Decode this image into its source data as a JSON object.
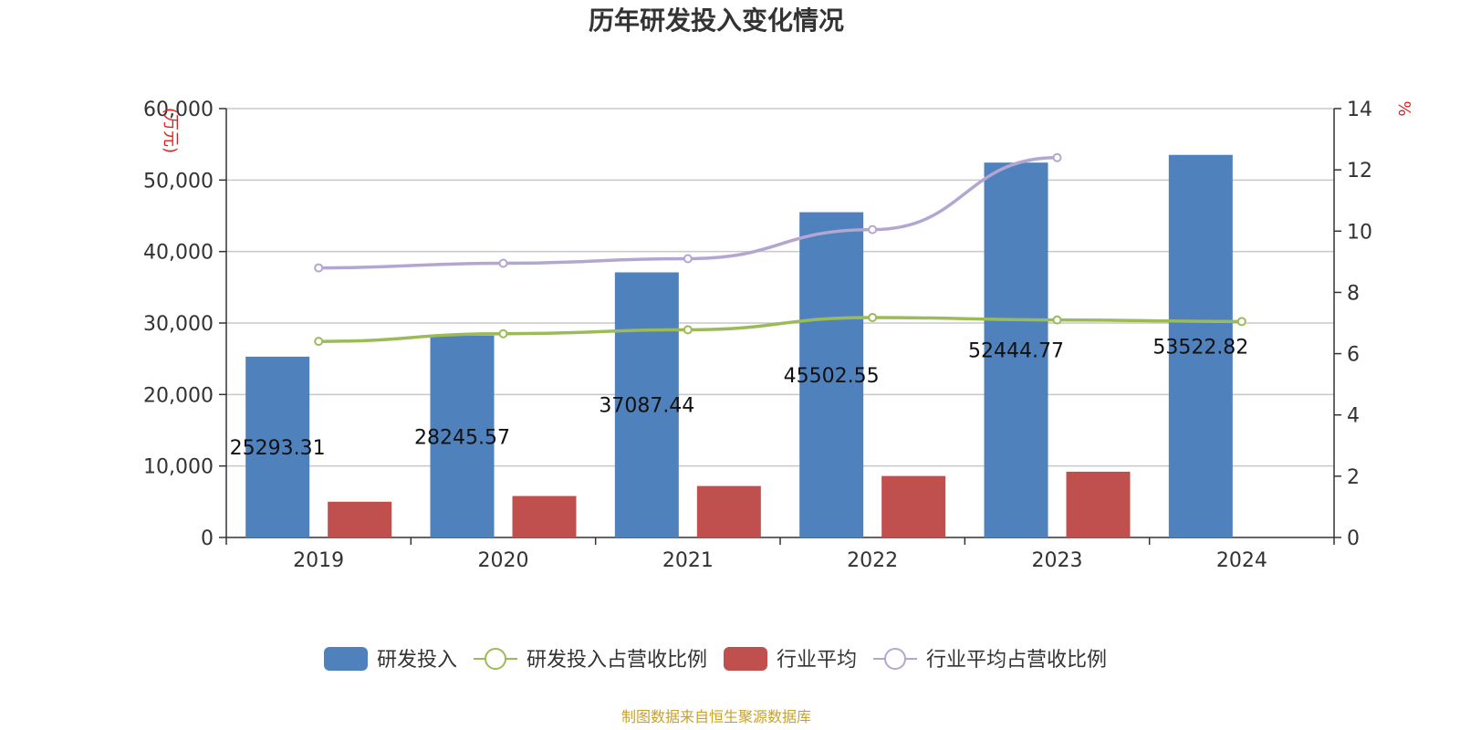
{
  "chart_data": {
    "type": "bar",
    "title": "历年研发投入变化情况",
    "categories": [
      "2019",
      "2020",
      "2021",
      "2022",
      "2023",
      "2024"
    ],
    "y_left": {
      "unit": "(万元)",
      "ylim": [
        0,
        60000
      ],
      "ticks": [
        "0",
        "10,000",
        "20,000",
        "30,000",
        "40,000",
        "50,000",
        "60,000"
      ]
    },
    "y_right": {
      "unit": "%",
      "ylim": [
        0,
        14
      ],
      "ticks": [
        "0",
        "2",
        "4",
        "6",
        "8",
        "10",
        "12",
        "14"
      ]
    },
    "grid": true,
    "legend_position": "bottom-center",
    "series": [
      {
        "name": "研发投入",
        "kind": "bar",
        "axis": "left",
        "color": "#4f81bd",
        "values": [
          25293.31,
          28245.57,
          37087.44,
          45502.55,
          52444.77,
          53522.82
        ],
        "labels": [
          "25293.31",
          "28245.57",
          "37087.44",
          "45502.55",
          "52444.77",
          "53522.82"
        ]
      },
      {
        "name": "研发投入占营收比例",
        "kind": "line",
        "axis": "right",
        "color": "#9bbb59",
        "values": [
          6.4,
          6.65,
          6.78,
          7.18,
          7.1,
          7.05
        ]
      },
      {
        "name": "行业平均",
        "kind": "bar",
        "axis": "left",
        "color": "#c0504d",
        "values": [
          5000,
          5800,
          7200,
          8600,
          9200,
          null
        ]
      },
      {
        "name": "行业平均占营收比例",
        "kind": "line",
        "axis": "right",
        "color": "#b3a7d1",
        "values": [
          8.8,
          8.95,
          9.1,
          10.05,
          12.4,
          null
        ]
      }
    ],
    "source": "制图数据来自恒生聚源数据库"
  }
}
